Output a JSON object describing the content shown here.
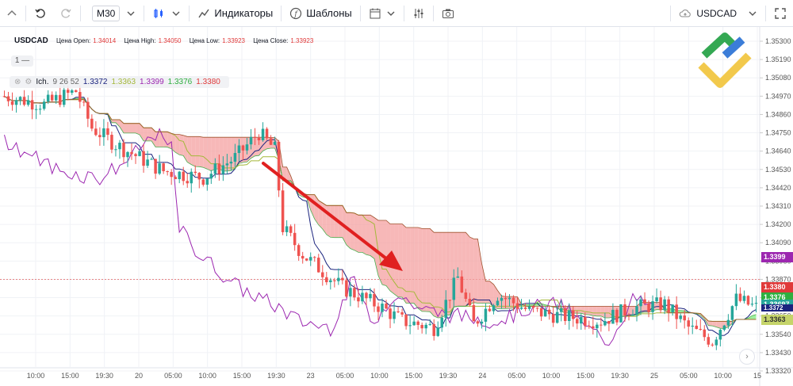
{
  "toolbar": {
    "timeframe": "M30",
    "indicators_label": "Индикаторы",
    "templates_label": "Шаблоны",
    "symbol_search": "USDCAD"
  },
  "legend": {
    "symbol": "USDCAD",
    "open_label": "Цена Open:",
    "open_value": "1.34014",
    "high_label": "Цена High:",
    "high_value": "1.34050",
    "low_label": "Цена Low:",
    "low_value": "1.33923",
    "close_label": "Цена Close:",
    "close_value": "1.33923",
    "pane_count": "1 —"
  },
  "ichimoku": {
    "name": "Ich.",
    "params": "9 26 52",
    "v1": "1.3372",
    "v2": "1.3363",
    "v3": "1.3399",
    "v4": "1.3376",
    "v5": "1.3380",
    "colors": {
      "v1": "#1a237e",
      "v2": "#a4b83a",
      "v3": "#9c27b0",
      "v4": "#2eaf3f",
      "v5": "#e03a3a"
    }
  },
  "axis": {
    "y_labels": [
      "1.35300",
      "1.35190",
      "1.35080",
      "1.34970",
      "1.34860",
      "1.34750",
      "1.34640",
      "1.34530",
      "1.34420",
      "1.34310",
      "1.34200",
      "1.34090",
      "1.33980",
      "1.33870",
      "1.33760",
      "1.33650",
      "1.33540",
      "1.33430",
      "1.33320"
    ],
    "x_labels": [
      "10:00",
      "15:00",
      "19:30",
      "20",
      "05:00",
      "10:00",
      "15:00",
      "19:30",
      "23",
      "05:00",
      "10:00",
      "15:00",
      "19:30",
      "24",
      "05:00",
      "10:00",
      "15:00",
      "19:30",
      "25",
      "05:00",
      "10:00",
      "15"
    ]
  },
  "badges": {
    "b1": "1.3399",
    "b2": "1.3380",
    "b3": "1.3376",
    "b4": "1.33697",
    "b5": "1.3363",
    "b6": "1.3372"
  },
  "colors": {
    "bull": "#26a69a",
    "bear": "#ef5350",
    "cloud_bull": "#7dea7d",
    "cloud_bear": "#f4a0a0",
    "arrow": "#e02020"
  }
}
